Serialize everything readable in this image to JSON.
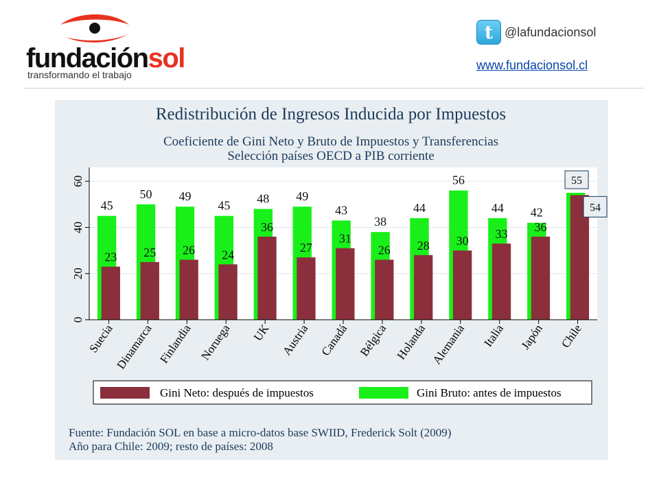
{
  "header": {
    "logo_main": "fundaciónsol",
    "logo_tagline": "transformando el trabajo",
    "twitter_handle": "@lafundacionsol",
    "website": "www.fundacionsol.cl",
    "icon": "twitter-icon"
  },
  "colors": {
    "bruto": "#19f019",
    "neto": "#8b2f3c",
    "logo_red": "#e8321f",
    "panel_bg": "#e9eef2"
  },
  "chart_data": {
    "type": "bar",
    "title": "Redistribución de Ingresos Inducida por Impuestos",
    "subtitle_lines": [
      "Coeficiente de Gini Neto y Bruto de Impuestos y Transferencias",
      "Selección países OECD a PIB corriente"
    ],
    "categories": [
      "Suecia",
      "Dinamarca",
      "Finlandia",
      "Noruega",
      "UK",
      "Austria",
      "Canadá",
      "Bélgica",
      "Holanda",
      "Alemania",
      "Italia",
      "Japón",
      "Chile"
    ],
    "series": [
      {
        "name": "Gini Bruto: antes de impuestos",
        "values": [
          45,
          50,
          49,
          45,
          48,
          49,
          43,
          38,
          44,
          56,
          44,
          42,
          55
        ]
      },
      {
        "name": "Gini Neto: después de impuestos",
        "values": [
          23,
          25,
          26,
          24,
          36,
          27,
          31,
          26,
          28,
          30,
          33,
          36,
          54
        ]
      }
    ],
    "yticks": [
      "0",
      "20",
      "40",
      "60"
    ],
    "ylim": [
      0,
      66
    ],
    "legend_position": "bottom",
    "source_lines": [
      "Fuente: Fundación SOL en base a micro-datos base SWIID, Frederick Solt (2009)",
      "Año para Chile: 2009; resto de países: 2008"
    ]
  }
}
